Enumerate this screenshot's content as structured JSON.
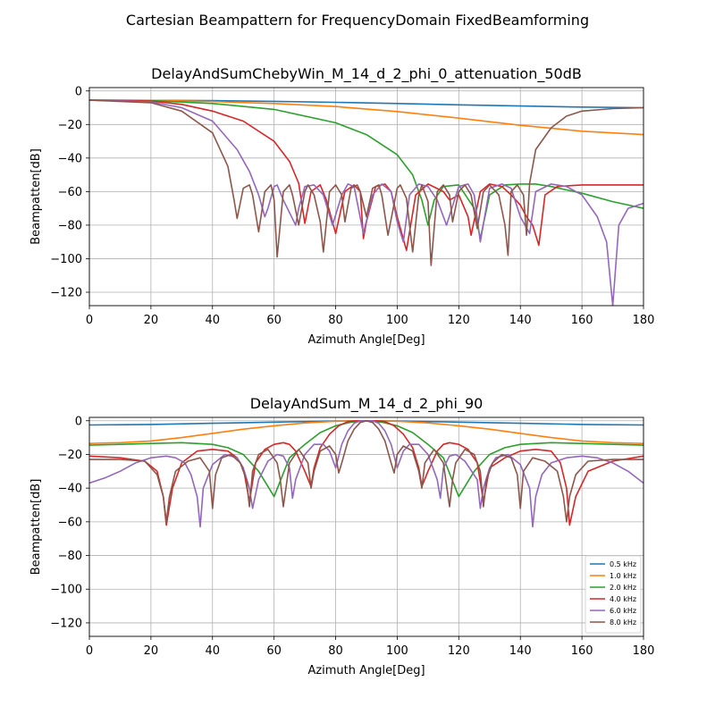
{
  "figure": {
    "suptitle": "Cartesian Beampattern for FrequencyDomain FixedBeamforming"
  },
  "chart_data": [
    {
      "type": "line",
      "title": "DelayAndSumChebyWin_M_14_d_2_phi_0_attenuation_50dB",
      "xlabel": "Azimuth Angle[Deg]",
      "ylabel": "Beampatten[dB]",
      "xlim": [
        0,
        180
      ],
      "ylim": [
        -128,
        2
      ],
      "xticks": [
        0,
        20,
        40,
        60,
        80,
        100,
        120,
        140,
        160,
        180
      ],
      "yticks": [
        0,
        -20,
        -40,
        -60,
        -80,
        -100,
        -120
      ],
      "grid": true,
      "series": [
        {
          "name": "0.5 kHz",
          "color": "#1f77b4",
          "x": [
            0,
            20,
            40,
            60,
            80,
            100,
            120,
            140,
            160,
            180
          ],
          "y": [
            -5.5,
            -5.6,
            -5.8,
            -6.2,
            -6.8,
            -7.5,
            -8.3,
            -9.0,
            -9.6,
            -10.0
          ]
        },
        {
          "name": "1.0 kHz",
          "color": "#ff7f0e",
          "x": [
            0,
            20,
            40,
            60,
            80,
            100,
            120,
            140,
            160,
            180
          ],
          "y": [
            -5.5,
            -5.6,
            -6.3,
            -7.5,
            -9.3,
            -12.3,
            -16.2,
            -20.5,
            -24.0,
            -26.0
          ]
        },
        {
          "name": "2.0 kHz",
          "color": "#2ca02c",
          "x": [
            0,
            20,
            40,
            60,
            80,
            90,
            100,
            105,
            108,
            110,
            112,
            115,
            120,
            125,
            127,
            130,
            135,
            140,
            145,
            150,
            160,
            170,
            180
          ],
          "y": [
            -5.5,
            -5.8,
            -7.5,
            -11,
            -19,
            -26,
            -38,
            -50,
            -65,
            -80,
            -65,
            -57,
            -56,
            -70,
            -88,
            -62,
            -56,
            -55.5,
            -55.5,
            -57,
            -61,
            -66,
            -70
          ]
        },
        {
          "name": "4.0 kHz",
          "color": "#d62728",
          "x": [
            0,
            20,
            30,
            40,
            50,
            60,
            65,
            68,
            70,
            72,
            75,
            77,
            80,
            83,
            86,
            88,
            89,
            90,
            93,
            96,
            98,
            100,
            103,
            106,
            110,
            115,
            117,
            120,
            123,
            124,
            127,
            130,
            134,
            137,
            140,
            142,
            144,
            146,
            148,
            152,
            160,
            170,
            180
          ],
          "y": [
            -5.5,
            -6,
            -8,
            -12,
            -18,
            -30,
            -42,
            -55,
            -79,
            -60,
            -56,
            -65,
            -85,
            -60,
            -56,
            -60,
            -88,
            -78,
            -57,
            -55.5,
            -60,
            -75,
            -95,
            -62,
            -55.5,
            -60,
            -65,
            -62,
            -75,
            -86,
            -60,
            -55.5,
            -57,
            -62,
            -68,
            -75,
            -80,
            -92,
            -62,
            -57,
            -56,
            -56,
            -56
          ]
        },
        {
          "name": "6.0 kHz",
          "color": "#9467bd",
          "x": [
            0,
            20,
            30,
            40,
            48,
            52,
            55,
            57,
            58,
            60,
            61,
            63,
            67,
            68,
            70,
            73,
            76,
            79,
            82,
            84,
            86,
            89,
            92,
            95,
            98,
            100,
            102,
            104,
            107,
            110,
            113,
            116,
            120,
            123,
            125,
            127,
            130,
            134,
            137,
            140,
            143,
            145,
            150,
            155,
            160,
            165,
            168,
            170,
            172,
            175,
            180
          ],
          "y": [
            -5.5,
            -6.5,
            -10,
            -18,
            -35,
            -48,
            -62,
            -75,
            -70,
            -57,
            -56,
            -65,
            -80,
            -70,
            -57,
            -56,
            -62,
            -80,
            -62,
            -55.5,
            -57,
            -85,
            -62,
            -55.5,
            -60,
            -78,
            -90,
            -62,
            -55.5,
            -57,
            -65,
            -80,
            -57,
            -55.5,
            -62,
            -90,
            -58,
            -55.5,
            -58,
            -75,
            -85,
            -60,
            -55.5,
            -57,
            -62,
            -75,
            -90,
            -128,
            -80,
            -70,
            -67
          ]
        },
        {
          "name": "8.0 kHz",
          "color": "#8c564b",
          "x": [
            0,
            20,
            30,
            40,
            45,
            47,
            48,
            50,
            52,
            53,
            55,
            57,
            59,
            60,
            61,
            63,
            65,
            66,
            68,
            70,
            71,
            73,
            75,
            76,
            78,
            80,
            82,
            83,
            85,
            87,
            88,
            90,
            92,
            94,
            95,
            97,
            100,
            101,
            103,
            105,
            107,
            108,
            110,
            111,
            113,
            115,
            117,
            118,
            120,
            122,
            124,
            126,
            128,
            130,
            133,
            135,
            136,
            137,
            139,
            141,
            142,
            143,
            145,
            150,
            155,
            160,
            170,
            180
          ],
          "y": [
            -5.5,
            -7,
            -12,
            -25,
            -45,
            -65,
            -76,
            -58,
            -56,
            -62,
            -84,
            -60,
            -56,
            -65,
            -99,
            -60,
            -56,
            -62,
            -80,
            -60,
            -56,
            -62,
            -78,
            -96,
            -60,
            -56,
            -62,
            -78,
            -58,
            -56,
            -60,
            -75,
            -58,
            -56,
            -62,
            -86,
            -58,
            -56,
            -64,
            -96,
            -62,
            -56,
            -66,
            -104,
            -60,
            -56,
            -62,
            -78,
            -60,
            -56,
            -62,
            -82,
            -60,
            -56,
            -62,
            -80,
            -98,
            -60,
            -56,
            -62,
            -86,
            -55,
            -35,
            -22,
            -15,
            -12,
            -10.5,
            -10
          ]
        }
      ]
    },
    {
      "type": "line",
      "title": "DelayAndSum_M_14_d_2_phi_90",
      "xlabel": "Azimuth Angle[Deg]",
      "ylabel": "Beampatten[dB]",
      "xlim": [
        0,
        180
      ],
      "ylim": [
        -128,
        2
      ],
      "xticks": [
        0,
        20,
        40,
        60,
        80,
        100,
        120,
        140,
        160,
        180
      ],
      "yticks": [
        0,
        -20,
        -40,
        -60,
        -80,
        -100,
        -120
      ],
      "grid": true,
      "legend": "lower-right",
      "series": [
        {
          "name": "0.5 kHz",
          "color": "#1f77b4",
          "x": [
            0,
            20,
            40,
            60,
            80,
            90,
            100,
            120,
            140,
            160,
            180
          ],
          "y": [
            -2.5,
            -2.2,
            -1.5,
            -0.8,
            -0.2,
            0,
            -0.2,
            -0.8,
            -1.5,
            -2.2,
            -2.5
          ]
        },
        {
          "name": "1.0 kHz",
          "color": "#ff7f0e",
          "x": [
            0,
            10,
            20,
            30,
            40,
            50,
            60,
            70,
            80,
            90,
            100,
            110,
            120,
            130,
            140,
            150,
            160,
            170,
            180
          ],
          "y": [
            -13.5,
            -13,
            -12,
            -10,
            -7.5,
            -5,
            -3,
            -1.3,
            -0.3,
            0,
            -0.3,
            -1.3,
            -3,
            -5,
            -7.5,
            -10,
            -12,
            -13,
            -13.5
          ]
        },
        {
          "name": "2.0 kHz",
          "color": "#2ca02c",
          "x": [
            0,
            10,
            20,
            30,
            40,
            45,
            50,
            55,
            60,
            65,
            70,
            75,
            80,
            85,
            90,
            95,
            100,
            105,
            110,
            115,
            120,
            125,
            130,
            135,
            140,
            150,
            160,
            170,
            180
          ],
          "y": [
            -14.5,
            -14,
            -13.5,
            -13,
            -14,
            -16,
            -20,
            -30,
            -45,
            -22,
            -14,
            -7,
            -3,
            -0.8,
            0,
            -0.8,
            -3,
            -7,
            -14,
            -22,
            -45,
            -30,
            -20,
            -16,
            -14,
            -13,
            -13.5,
            -14,
            -14.5
          ]
        },
        {
          "name": "4.0 kHz",
          "color": "#d62728",
          "x": [
            0,
            10,
            18,
            22,
            24,
            25,
            27,
            30,
            35,
            40,
            45,
            48,
            50,
            52,
            54,
            57,
            60,
            63,
            65,
            67,
            70,
            72,
            73,
            75,
            78,
            81,
            84,
            87,
            90,
            93,
            96,
            99,
            102,
            105,
            107,
            108,
            110,
            113,
            115,
            117,
            120,
            123,
            126,
            128,
            130,
            135,
            140,
            145,
            150,
            153,
            155,
            156,
            158,
            162,
            170,
            180
          ],
          "y": [
            -21,
            -22,
            -24,
            -30,
            -45,
            -62,
            -40,
            -25,
            -18,
            -17,
            -18,
            -22,
            -28,
            -48,
            -25,
            -17,
            -14,
            -13,
            -14,
            -18,
            -30,
            -39,
            -28,
            -16,
            -8,
            -3,
            -0.5,
            0,
            0,
            0,
            -0.5,
            -3,
            -8,
            -16,
            -28,
            -39,
            -30,
            -18,
            -14,
            -13,
            -14,
            -17,
            -25,
            -48,
            -28,
            -22,
            -18,
            -17,
            -18,
            -25,
            -40,
            -62,
            -45,
            -30,
            -24,
            -21
          ]
        },
        {
          "name": "6.0 kHz",
          "color": "#9467bd",
          "x": [
            0,
            5,
            10,
            15,
            20,
            25,
            28,
            31,
            33,
            35,
            36,
            37,
            40,
            44,
            48,
            50,
            52,
            53,
            55,
            58,
            61,
            63,
            65,
            66,
            67,
            70,
            73,
            76,
            78,
            80,
            82,
            84,
            86,
            88,
            90,
            92,
            94,
            96,
            98,
            100,
            102,
            104,
            107,
            110,
            113,
            114,
            115,
            117,
            119,
            122,
            126,
            127,
            128,
            130,
            132,
            136,
            140,
            143,
            144,
            145,
            147,
            150,
            155,
            160,
            165,
            170,
            175,
            180
          ],
          "y": [
            -37,
            -34,
            -30,
            -25,
            -22,
            -21,
            -22,
            -25,
            -32,
            -45,
            -63,
            -40,
            -26,
            -20,
            -22,
            -28,
            -40,
            -52,
            -35,
            -24,
            -20,
            -21,
            -28,
            -46,
            -35,
            -20,
            -14,
            -14,
            -18,
            -28,
            -14,
            -6,
            -1.5,
            0,
            0,
            0,
            -1.5,
            -6,
            -14,
            -28,
            -18,
            -14,
            -14,
            -20,
            -35,
            -46,
            -28,
            -21,
            -20,
            -24,
            -35,
            -52,
            -40,
            -28,
            -22,
            -20,
            -26,
            -40,
            -63,
            -45,
            -32,
            -25,
            -22,
            -21,
            -22,
            -25,
            -30,
            -37
          ]
        },
        {
          "name": "8.0 kHz",
          "color": "#8c564b",
          "x": [
            0,
            10,
            18,
            22,
            24,
            25,
            26,
            28,
            32,
            36,
            39,
            40,
            41,
            43,
            46,
            49,
            51,
            52,
            53,
            55,
            58,
            61,
            62,
            63,
            65,
            68,
            71,
            72,
            73,
            75,
            78,
            80,
            81,
            82,
            84,
            86,
            88,
            90,
            92,
            94,
            96,
            98,
            99,
            100,
            102,
            105,
            107,
            108,
            109,
            112,
            115,
            117,
            118,
            119,
            122,
            125,
            127,
            128,
            129,
            131,
            134,
            137,
            139,
            140,
            141,
            144,
            148,
            152,
            154,
            155,
            156,
            158,
            162,
            170,
            180
          ],
          "y": [
            -23,
            -23,
            -24,
            -32,
            -45,
            -60,
            -45,
            -30,
            -24,
            -22,
            -30,
            -52,
            -32,
            -22,
            -20,
            -25,
            -35,
            -51,
            -30,
            -20,
            -17,
            -25,
            -35,
            -51,
            -25,
            -17,
            -25,
            -40,
            -30,
            -18,
            -15,
            -20,
            -31,
            -25,
            -12,
            -5,
            -1,
            0,
            -1,
            -5,
            -12,
            -25,
            -31,
            -20,
            -15,
            -18,
            -30,
            -40,
            -25,
            -17,
            -25,
            -51,
            -35,
            -25,
            -17,
            -20,
            -30,
            -51,
            -35,
            -25,
            -20,
            -22,
            -32,
            -52,
            -30,
            -22,
            -24,
            -30,
            -45,
            -60,
            -45,
            -32,
            -24,
            -23,
            -23
          ]
        }
      ]
    }
  ]
}
